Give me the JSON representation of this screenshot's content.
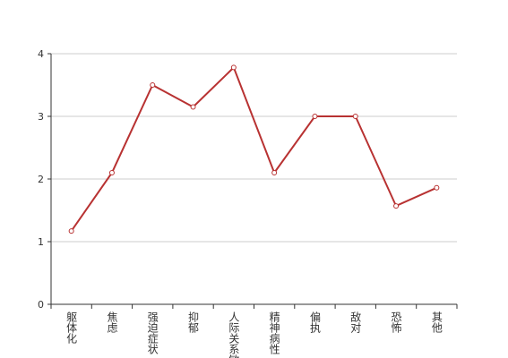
{
  "chart_data": {
    "type": "line",
    "categories": [
      "躯体化",
      "焦虑",
      "强迫症状",
      "抑郁",
      "人际关系敏感",
      "精神病性",
      "偏执",
      "敌对",
      "恐怖",
      "其他"
    ],
    "values": [
      1.17,
      2.1,
      3.5,
      3.15,
      3.78,
      2.1,
      3.0,
      3.0,
      1.57,
      1.86
    ],
    "color": "#b83232",
    "ylim": [
      0,
      4
    ],
    "yticks": [
      0,
      1,
      2,
      3,
      4
    ],
    "grid": true
  }
}
